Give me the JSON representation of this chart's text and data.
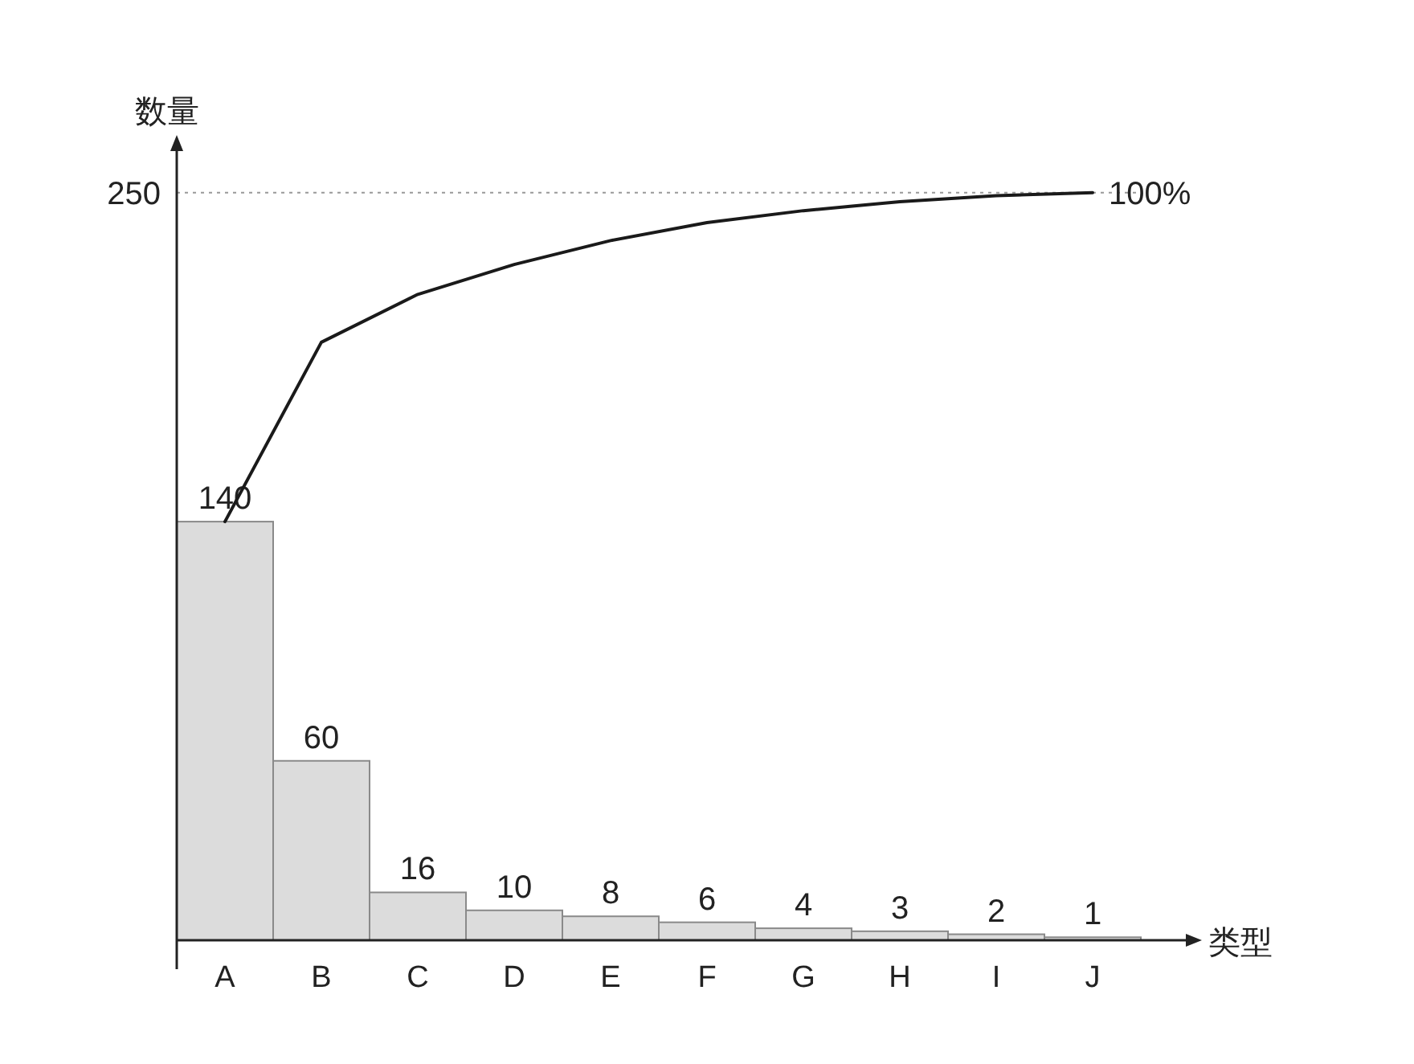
{
  "chart_data": {
    "type": "bar",
    "categories": [
      "A",
      "B",
      "C",
      "D",
      "E",
      "F",
      "G",
      "H",
      "I",
      "J"
    ],
    "xlabel": "类型",
    "ylabel": "数量",
    "ylim": [
      0,
      265
    ],
    "yticks": [
      250
    ],
    "series": [
      {
        "color": "#dcdcdc",
        "values": [
          140,
          60,
          16,
          10,
          8,
          6,
          4,
          3,
          2,
          1
        ],
        "value_labels": [
          "140",
          "60",
          "16",
          "10",
          "8",
          "6",
          "4",
          "3",
          "2",
          "1"
        ]
      },
      {
        "type": "line",
        "color": "#1a1a1a",
        "values": [
          140,
          200,
          216,
          226,
          234,
          240,
          244,
          247,
          249,
          250
        ]
      }
    ],
    "ref_lines": [
      {
        "axis": "y",
        "value": 250,
        "line_style": "dotted",
        "color": "#999999"
      }
    ],
    "annotations": [
      {
        "text": "100%",
        "x": "J",
        "y": 250
      }
    ]
  }
}
